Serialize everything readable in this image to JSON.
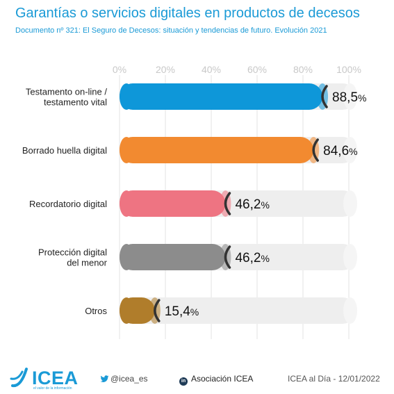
{
  "title": "Garantías o servicios digitales en productos de decesos",
  "subtitle": "Documento nº 321: El Seguro de Decesos: situación y tendencias de futuro. Evolución 2021",
  "chart_data": {
    "type": "bar",
    "orientation": "horizontal",
    "categories": [
      "Testamento on-line /\ntestamento vital",
      "Borrado huella digital",
      "Recordatorio digital",
      "Protección digital\ndel menor",
      "Otros"
    ],
    "values": [
      88.5,
      84.6,
      46.2,
      46.2,
      15.4
    ],
    "value_labels": [
      "88,5",
      "84,6",
      "46,2",
      "46,2",
      "15,4"
    ],
    "value_suffix": "%",
    "colors": [
      "#0e97d9",
      "#f28a30",
      "#ee7482",
      "#8c8c8c",
      "#b07d2b"
    ],
    "xlim": [
      0,
      100
    ],
    "xticks": [
      "0%",
      "20%",
      "40%",
      "60%",
      "80%",
      "100%"
    ],
    "grid": true,
    "legend": "none"
  },
  "footer": {
    "logo": "ICEA",
    "logo_tagline": "el valor de la información",
    "twitter": "@icea_es",
    "linkedin_badge": "in",
    "linkedin": "Asociación ICEA",
    "date": "ICEA al Día - 12/01/2022"
  }
}
